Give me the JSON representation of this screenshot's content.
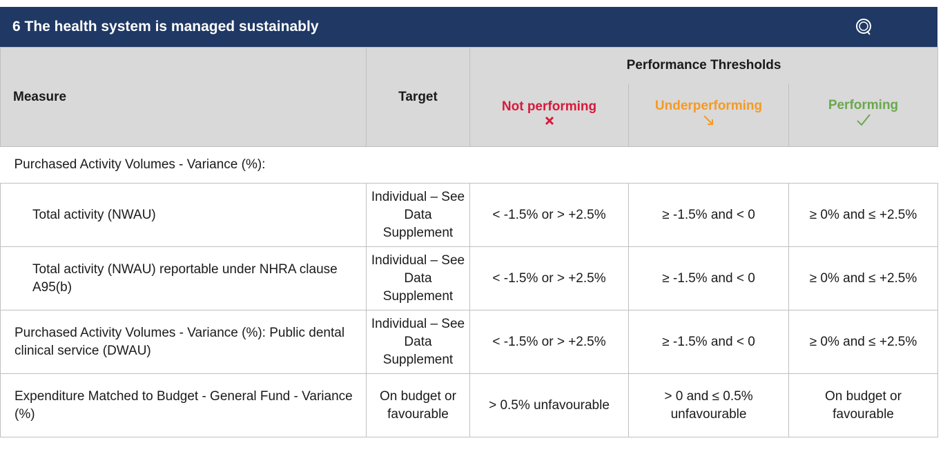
{
  "header": {
    "title": "6 The health system is managed sustainably"
  },
  "table": {
    "columns": {
      "measure": "Measure",
      "target": "Target",
      "not_performing": "Not performing",
      "underperforming": "Underperforming",
      "performing": "Performing"
    },
    "group_header": "Performance Thresholds",
    "section": "Purchased Activity Volumes - Variance (%):",
    "rows": [
      [
        "Total activity (NWAU)",
        "Individual – See Data Supplement",
        "< -1.5% or > +2.5%",
        "≥ -1.5% and < 0",
        "≥ 0% and ≤ +2.5%"
      ],
      [
        "Total activity (NWAU) reportable under NHRA clause A95(b)",
        "Individual – See Data Supplement",
        "< -1.5% or > +2.5%",
        "≥ -1.5% and < 0",
        "≥ 0% and ≤ +2.5%"
      ],
      [
        "Purchased Activity Volumes - Variance (%): Public dental clinical service (DWAU)",
        "Individual – See Data Supplement",
        "< -1.5% or > +2.5%",
        "≥ -1.5% and < 0",
        "≥ 0% and ≤ +2.5%"
      ],
      [
        "Expenditure Matched to Budget - General Fund - Variance (%)",
        "On budget or favourable",
        "> 0.5% unfavourable",
        "> 0 and ≤ 0.5% unfavourable",
        "On budget or favourable"
      ]
    ]
  }
}
